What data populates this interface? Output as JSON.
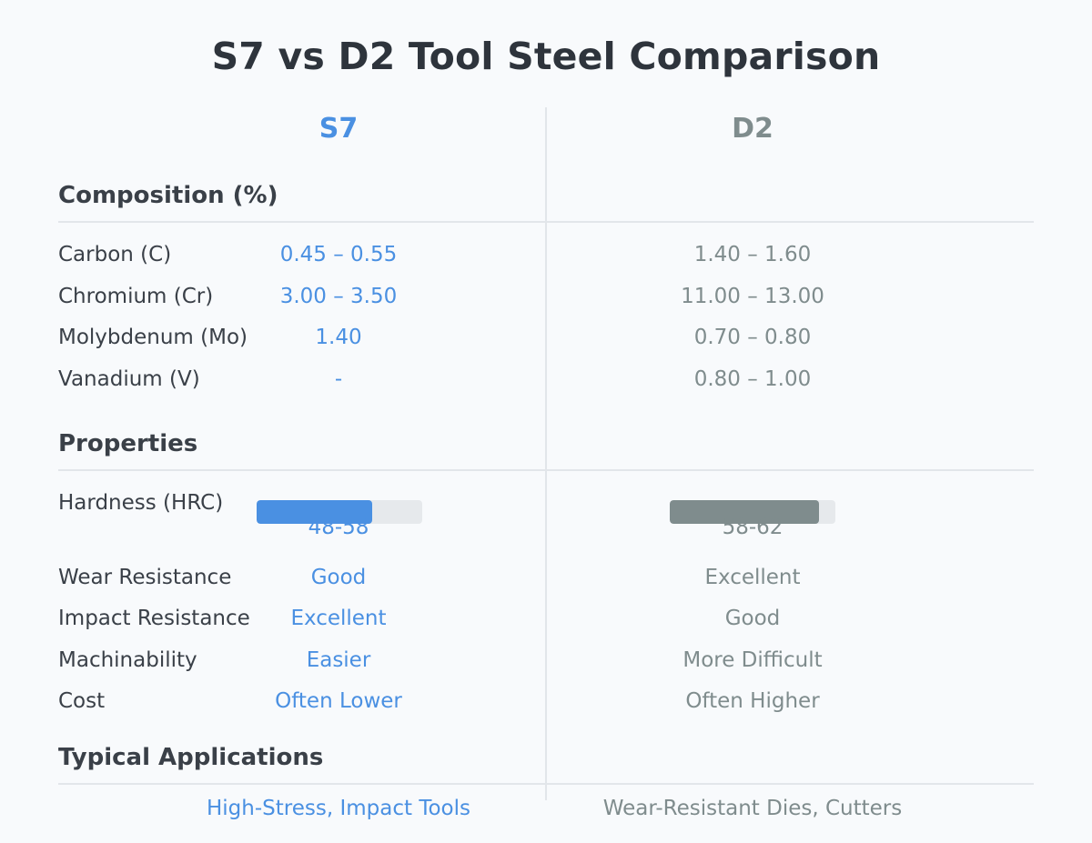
{
  "title": "S7 vs D2 Tool Steel Comparison",
  "colors": {
    "s7": "#4a90e2",
    "d2": "#7f8c8d",
    "track": "#e6e9ec",
    "divider": "#e2e6ea"
  },
  "columns": {
    "s7": "S7",
    "d2": "D2"
  },
  "composition": {
    "heading": "Composition (%)",
    "rows": [
      {
        "label": "Carbon (C)",
        "s7": "0.45 – 0.55",
        "d2": "1.40 – 1.60"
      },
      {
        "label": "Chromium (Cr)",
        "s7": "3.00 – 3.50",
        "d2": "11.00 – 13.00"
      },
      {
        "label": "Molybdenum (Mo)",
        "s7": "1.40",
        "d2": "0.70 – 0.80"
      },
      {
        "label": "Vanadium (V)",
        "s7": "-",
        "d2": "0.80 – 1.00"
      }
    ]
  },
  "properties": {
    "heading": "Properties",
    "hardness": {
      "label": "Hardness (HRC)",
      "s7": {
        "text": "48-58",
        "fill_fraction": 0.7
      },
      "d2": {
        "text": "58-62",
        "fill_fraction": 0.9
      }
    },
    "rows": [
      {
        "label": "Wear Resistance",
        "s7": "Good",
        "d2": "Excellent"
      },
      {
        "label": "Impact Resistance",
        "s7": "Excellent",
        "d2": "Good"
      },
      {
        "label": "Machinability",
        "s7": "Easier",
        "d2": "More Difficult"
      },
      {
        "label": "Cost",
        "s7": "Often Lower",
        "d2": "Often Higher"
      }
    ]
  },
  "applications": {
    "heading": "Typical Applications",
    "s7": "High-Stress, Impact Tools",
    "d2": "Wear-Resistant Dies, Cutters"
  }
}
